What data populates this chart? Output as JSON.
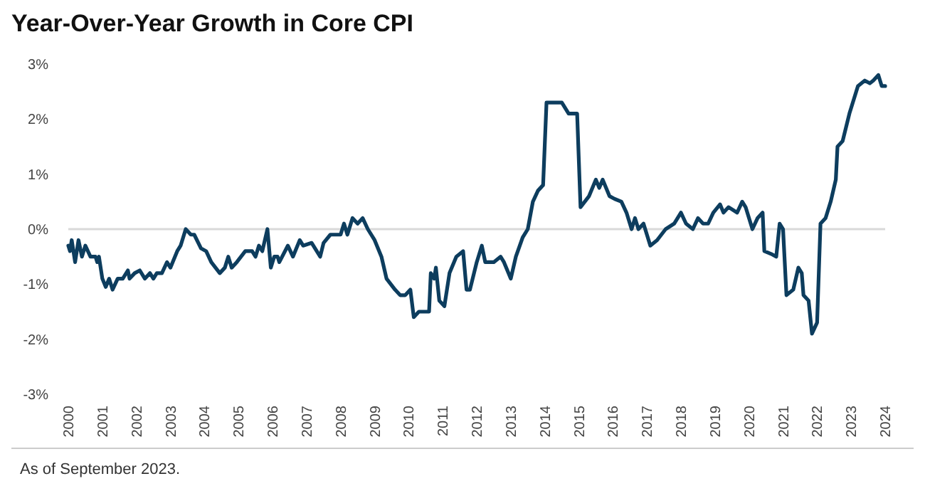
{
  "chart_data": {
    "type": "line",
    "title": "Year-Over-Year Growth in Core CPI",
    "annotations": [
      "As of September 2023."
    ],
    "xlim": [
      2000,
      2024
    ],
    "xticks": [
      2000,
      2001,
      2002,
      2003,
      2004,
      2005,
      2006,
      2007,
      2008,
      2009,
      2010,
      2011,
      2012,
      2013,
      2014,
      2015,
      2016,
      2017,
      2018,
      2019,
      2020,
      2021,
      2022,
      2023,
      2024
    ],
    "ylim": [
      -3,
      3
    ],
    "yticks": [
      {
        "value": -3,
        "label": "-3%"
      },
      {
        "value": -2,
        "label": "-2%"
      },
      {
        "value": -1,
        "label": "-1%"
      },
      {
        "value": 0,
        "label": "0%"
      },
      {
        "value": 1,
        "label": "1%"
      },
      {
        "value": 2,
        "label": "2%"
      },
      {
        "value": 3,
        "label": "3%"
      }
    ],
    "ref_lines": [
      {
        "axis": "y",
        "value": 0,
        "color": "#d9d9d9"
      }
    ],
    "marker": "none",
    "line_style": "solid",
    "series": [
      {
        "color": "#0d3d5e",
        "x": [
          2000.0,
          2000.05,
          2000.1,
          2000.2,
          2000.3,
          2000.4,
          2000.5,
          2000.65,
          2000.8,
          2000.85,
          2000.9,
          2001.0,
          2001.1,
          2001.2,
          2001.3,
          2001.45,
          2001.6,
          2001.75,
          2001.8,
          2001.95,
          2002.1,
          2002.25,
          2002.4,
          2002.5,
          2002.6,
          2002.75,
          2002.9,
          2003.0,
          2003.2,
          2003.3,
          2003.45,
          2003.6,
          2003.7,
          2003.9,
          2004.05,
          2004.2,
          2004.45,
          2004.6,
          2004.7,
          2004.8,
          2004.95,
          2005.2,
          2005.4,
          2005.5,
          2005.6,
          2005.7,
          2005.85,
          2005.95,
          2006.05,
          2006.15,
          2006.2,
          2006.45,
          2006.6,
          2006.8,
          2006.9,
          2007.15,
          2007.4,
          2007.5,
          2007.7,
          2008.0,
          2008.1,
          2008.2,
          2008.35,
          2008.5,
          2008.65,
          2008.8,
          2009.0,
          2009.2,
          2009.35,
          2009.6,
          2009.75,
          2009.9,
          2010.05,
          2010.15,
          2010.3,
          2010.6,
          2010.65,
          2010.75,
          2010.8,
          2010.9,
          2011.05,
          2011.2,
          2011.4,
          2011.6,
          2011.7,
          2011.8,
          2012.0,
          2012.15,
          2012.25,
          2012.5,
          2012.7,
          2012.8,
          2013.0,
          2013.15,
          2013.35,
          2013.5,
          2013.65,
          2013.8,
          2013.95,
          2014.05,
          2014.3,
          2014.5,
          2014.7,
          2014.95,
          2015.05,
          2015.3,
          2015.5,
          2015.6,
          2015.7,
          2015.9,
          2016.05,
          2016.25,
          2016.4,
          2016.55,
          2016.65,
          2016.75,
          2016.9,
          2017.1,
          2017.3,
          2017.55,
          2017.8,
          2018.0,
          2018.15,
          2018.35,
          2018.5,
          2018.65,
          2018.8,
          2018.95,
          2019.15,
          2019.25,
          2019.4,
          2019.65,
          2019.8,
          2019.9,
          2020.0,
          2020.1,
          2020.25,
          2020.4,
          2020.45,
          2020.65,
          2020.8,
          2020.9,
          2021.0,
          2021.1,
          2021.3,
          2021.45,
          2021.55,
          2021.6,
          2021.75,
          2021.85,
          2022.0,
          2022.1,
          2022.25,
          2022.4,
          2022.55,
          2022.6,
          2022.75,
          2022.95,
          2023.2,
          2023.4,
          2023.55,
          2023.65,
          2023.8,
          2023.9,
          2024.0
        ],
        "values": [
          -0.3,
          -0.4,
          -0.2,
          -0.6,
          -0.2,
          -0.5,
          -0.3,
          -0.5,
          -0.5,
          -0.6,
          -0.5,
          -0.9,
          -1.05,
          -0.9,
          -1.1,
          -0.9,
          -0.9,
          -0.75,
          -0.9,
          -0.8,
          -0.75,
          -0.9,
          -0.8,
          -0.9,
          -0.8,
          -0.8,
          -0.6,
          -0.7,
          -0.4,
          -0.3,
          0.0,
          -0.1,
          -0.1,
          -0.35,
          -0.4,
          -0.6,
          -0.8,
          -0.7,
          -0.5,
          -0.7,
          -0.6,
          -0.4,
          -0.4,
          -0.5,
          -0.3,
          -0.4,
          0.0,
          -0.7,
          -0.5,
          -0.5,
          -0.6,
          -0.3,
          -0.5,
          -0.2,
          -0.3,
          -0.25,
          -0.5,
          -0.25,
          -0.1,
          -0.1,
          0.1,
          -0.1,
          0.2,
          0.1,
          0.2,
          0.0,
          -0.2,
          -0.5,
          -0.9,
          -1.1,
          -1.2,
          -1.2,
          -1.1,
          -1.6,
          -1.5,
          -1.5,
          -0.8,
          -0.9,
          -0.7,
          -1.3,
          -1.4,
          -0.8,
          -0.5,
          -0.4,
          -1.1,
          -1.1,
          -0.6,
          -0.3,
          -0.6,
          -0.6,
          -0.5,
          -0.6,
          -0.9,
          -0.5,
          -0.15,
          0.0,
          0.5,
          0.7,
          0.8,
          2.3,
          2.3,
          2.3,
          2.1,
          2.1,
          0.4,
          0.6,
          0.9,
          0.75,
          0.9,
          0.6,
          0.55,
          0.5,
          0.3,
          0.0,
          0.2,
          0.0,
          0.1,
          -0.3,
          -0.2,
          0.0,
          0.1,
          0.3,
          0.1,
          0.0,
          0.2,
          0.1,
          0.1,
          0.3,
          0.45,
          0.3,
          0.4,
          0.3,
          0.5,
          0.4,
          0.2,
          0.0,
          0.2,
          0.3,
          -0.4,
          -0.45,
          -0.5,
          0.1,
          0.0,
          -1.2,
          -1.1,
          -0.7,
          -0.8,
          -1.2,
          -1.3,
          -1.9,
          -1.7,
          0.1,
          0.2,
          0.5,
          0.9,
          1.5,
          1.6,
          2.1,
          2.6,
          2.7,
          2.65,
          2.7,
          2.8,
          2.6,
          2.6
        ]
      }
    ]
  }
}
